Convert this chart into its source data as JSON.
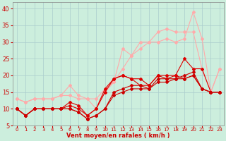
{
  "xlabel": "Vent moyen/en rafales ( km/h )",
  "background_color": "#cceedd",
  "grid_color": "#aacccc",
  "x_values": [
    0,
    1,
    2,
    3,
    4,
    5,
    6,
    7,
    8,
    9,
    10,
    11,
    12,
    13,
    14,
    15,
    16,
    17,
    18,
    19,
    20,
    21,
    22,
    23
  ],
  "series": [
    {
      "y": [
        13,
        12,
        13,
        13,
        13,
        14,
        17,
        14,
        13,
        13,
        16,
        18,
        28,
        26,
        30,
        30,
        30,
        31,
        30,
        31,
        39,
        31,
        15,
        22
      ],
      "color": "#ffaaaa",
      "marker": "D",
      "markersize": 2,
      "linewidth": 0.8,
      "zorder": 2
    },
    {
      "y": [
        13,
        12,
        13,
        13,
        13,
        14,
        14,
        13,
        13,
        10,
        15,
        18,
        22,
        26,
        28,
        30,
        33,
        34,
        33,
        33,
        33,
        22,
        15,
        22
      ],
      "color": "#ffaaaa",
      "marker": "D",
      "markersize": 2,
      "linewidth": 0.8,
      "zorder": 2
    },
    {
      "y": [
        10,
        8,
        10,
        10,
        10,
        10,
        12,
        11,
        8,
        10,
        16,
        19,
        20,
        19,
        19,
        17,
        20,
        20,
        20,
        25,
        22,
        22,
        15,
        15
      ],
      "color": "#dd0000",
      "marker": "D",
      "markersize": 2,
      "linewidth": 0.8,
      "zorder": 3
    },
    {
      "y": [
        10,
        8,
        10,
        10,
        10,
        10,
        11,
        10,
        8,
        10,
        15,
        19,
        20,
        19,
        17,
        17,
        20,
        19,
        20,
        19,
        20,
        16,
        15,
        15
      ],
      "color": "#dd0000",
      "marker": "D",
      "markersize": 2,
      "linewidth": 0.8,
      "zorder": 3
    },
    {
      "y": [
        10,
        8,
        10,
        10,
        10,
        10,
        10,
        9,
        7,
        8,
        10,
        15,
        16,
        17,
        17,
        16,
        19,
        19,
        19,
        20,
        21,
        16,
        15,
        15
      ],
      "color": "#cc0000",
      "marker": "D",
      "markersize": 2,
      "linewidth": 0.8,
      "zorder": 3
    },
    {
      "y": [
        10,
        8,
        10,
        10,
        10,
        10,
        10,
        9,
        7,
        8,
        10,
        14,
        15,
        16,
        16,
        16,
        18,
        18,
        19,
        19,
        20,
        16,
        15,
        15
      ],
      "color": "#cc0000",
      "marker": "D",
      "markersize": 2,
      "linewidth": 0.8,
      "zorder": 3
    }
  ],
  "ylim": [
    5,
    42
  ],
  "xlim": [
    -0.5,
    23.5
  ],
  "yticks": [
    5,
    10,
    15,
    20,
    25,
    30,
    35,
    40
  ],
  "xticks": [
    0,
    1,
    2,
    3,
    4,
    5,
    6,
    7,
    8,
    9,
    10,
    11,
    12,
    13,
    14,
    15,
    16,
    17,
    18,
    19,
    20,
    21,
    22,
    23
  ],
  "xlabel_size": 6,
  "xlabel_color": "#cc0000",
  "ytick_size": 6,
  "xtick_size": 5
}
